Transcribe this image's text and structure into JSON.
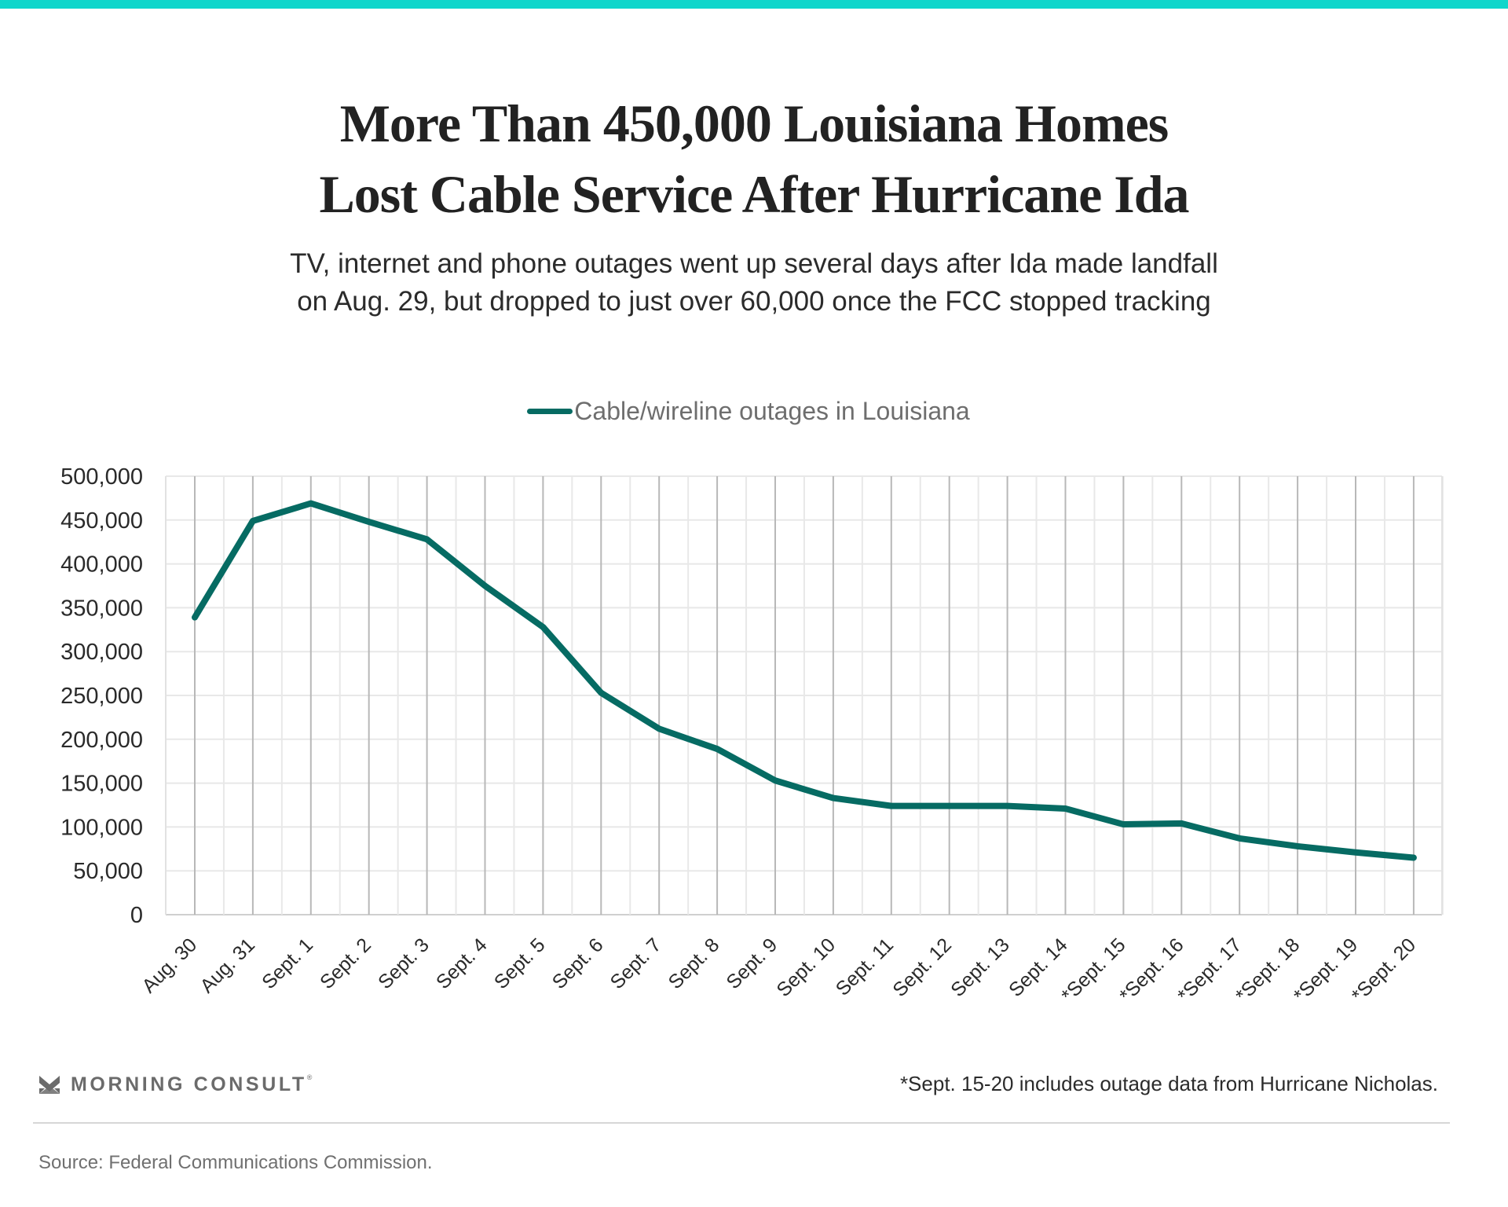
{
  "header": {
    "title_lines": [
      "More Than 450,000 Louisiana Homes",
      "Lost Cable Service After Hurricane Ida"
    ],
    "subtitle_lines": [
      "TV, internet and phone outages went up several days after Ida made landfall",
      "on Aug. 29, but dropped to just over 60,000 once the FCC stopped tracking"
    ],
    "accent_color": "#10d6cb"
  },
  "legend": {
    "label": "Cable/wireline outages in Louisiana",
    "color": "#066b63"
  },
  "chart_data": {
    "type": "line",
    "title": "More Than 450,000 Louisiana Homes Lost Cable Service After Hurricane Ida",
    "xlabel": "",
    "ylabel": "",
    "ylim": [
      0,
      500000
    ],
    "yticks": [
      0,
      50000,
      100000,
      150000,
      200000,
      250000,
      300000,
      350000,
      400000,
      450000,
      500000
    ],
    "ytick_labels": [
      "0",
      "50,000",
      "100,000",
      "150,000",
      "200,000",
      "250,000",
      "300,000",
      "350,000",
      "400,000",
      "450,000",
      "500,000"
    ],
    "grid": true,
    "legend_position": "top-center",
    "categories": [
      "Aug. 30",
      "Aug. 31",
      "Sept. 1",
      "Sept. 2",
      "Sept. 3",
      "Sept. 4",
      "Sept. 5",
      "Sept. 6",
      "Sept. 7",
      "Sept. 8",
      "Sept. 9",
      "Sept. 10",
      "Sept. 11",
      "Sept. 12",
      "Sept. 13",
      "Sept. 14",
      "*Sept. 15",
      "*Sept. 16",
      "*Sept. 17",
      "*Sept. 18",
      "*Sept. 19",
      "*Sept. 20"
    ],
    "series": [
      {
        "name": "Cable/wireline outages in Louisiana",
        "color": "#066b63",
        "values": [
          339000,
          449000,
          469000,
          448000,
          428000,
          375000,
          328000,
          253000,
          212000,
          189000,
          153000,
          133000,
          124000,
          124000,
          124000,
          121000,
          103000,
          104000,
          87000,
          78000,
          71000,
          65000
        ]
      }
    ]
  },
  "footer": {
    "brand": "MORNING CONSULT",
    "brand_mark": "®",
    "footnote": "*Sept. 15-20 includes outage data from Hurricane Nicholas.",
    "source": "Source: Federal Communications Commission."
  }
}
